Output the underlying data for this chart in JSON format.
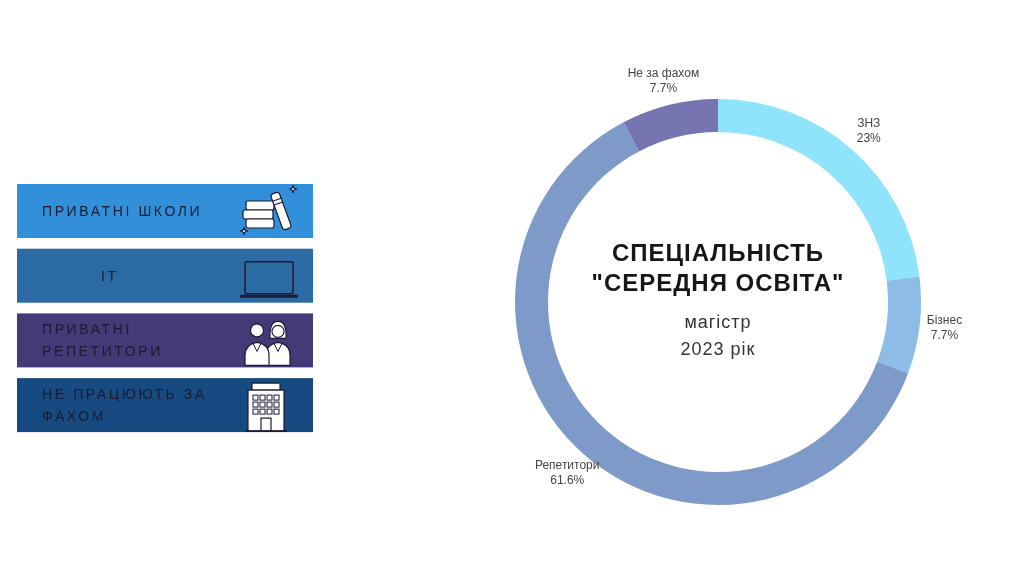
{
  "chart_data": [
    {
      "type": "other",
      "categories": [
        "ПРИВАТНІ ШКОЛИ",
        "IT",
        "ПРИВАТНІ РЕПЕТИТОРИ",
        "НЕ ПРАЦЮЮТЬ ЗА ФАХОМ"
      ],
      "colors": [
        "#3190d9",
        "#2c6aa3",
        "#453a78",
        "#164a80"
      ]
    },
    {
      "type": "donut",
      "title": "СПЕЦІАЛЬНІСТЬ \"СЕРЕДНЯ ОСВІТА\"",
      "subtitle": "магістр 2023 рік",
      "categories": [
        "ЗНЗ",
        "Бізнес",
        "Репетитори",
        "Не за фахом"
      ],
      "values": [
        23,
        7.7,
        61.6,
        7.7
      ],
      "colors": [
        "#8fe4fc",
        "#8dbde6",
        "#7e9ac8",
        "#7775b1"
      ],
      "value_labels": [
        "23%",
        "7.7%",
        "61.6%",
        "7.7%"
      ]
    }
  ]
}
